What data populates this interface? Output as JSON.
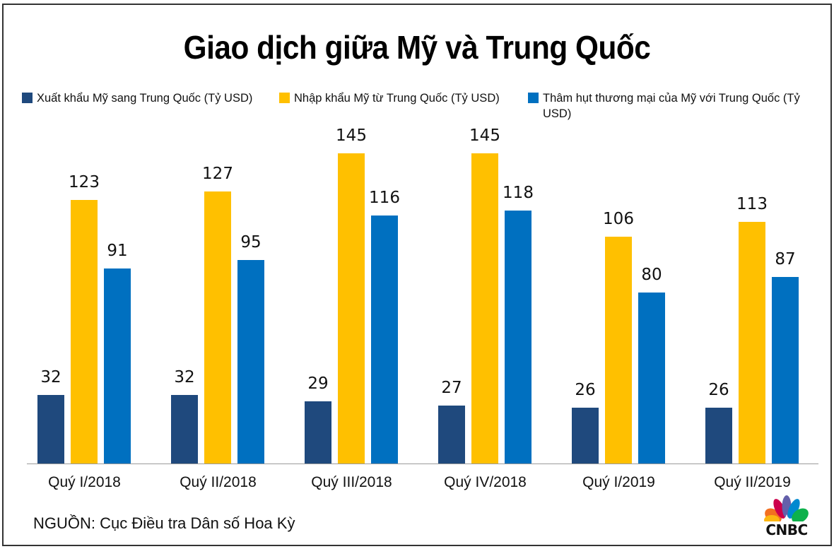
{
  "title": "Giao dịch giữa Mỹ và Trung Quốc",
  "legend": [
    {
      "label": "Xuất khẩu Mỹ sang Trung Quốc (Tỷ USD)",
      "color": "#1F497D"
    },
    {
      "label": "Nhập khẩu Mỹ từ Trung Quốc (Tỷ USD)",
      "color": "#FFC000"
    },
    {
      "label": "Thâm hụt thương mại của Mỹ với Trung Quốc (Tỷ USD)",
      "color": "#0070C0"
    }
  ],
  "source": "NGUỒN: Cục Điều tra Dân số Hoa Kỳ",
  "logo": {
    "text": "CNBC"
  },
  "chart_data": {
    "type": "bar",
    "title": "Giao dịch giữa Mỹ và Trung Quốc",
    "xlabel": "",
    "ylabel": "",
    "grid": false,
    "legend_position": "top",
    "ylim": [
      0,
      160
    ],
    "categories": [
      "Quý I/2018",
      "Quý II/2018",
      "Quý III/2018",
      "Quý IV/2018",
      "Quý I/2019",
      "Quý II/2019"
    ],
    "series": [
      {
        "name": "Xuất khẩu Mỹ sang Trung Quốc (Tỷ USD)",
        "color": "#1F497D",
        "values": [
          32,
          32,
          29,
          27,
          26,
          26
        ]
      },
      {
        "name": "Nhập khẩu Mỹ từ Trung Quốc (Tỷ USD)",
        "color": "#FFC000",
        "values": [
          123,
          127,
          145,
          145,
          106,
          113
        ]
      },
      {
        "name": "Thâm hụt thương mại của Mỹ với Trung Quốc (Tỷ USD)",
        "color": "#0070C0",
        "values": [
          91,
          95,
          116,
          118,
          80,
          87
        ]
      }
    ]
  }
}
